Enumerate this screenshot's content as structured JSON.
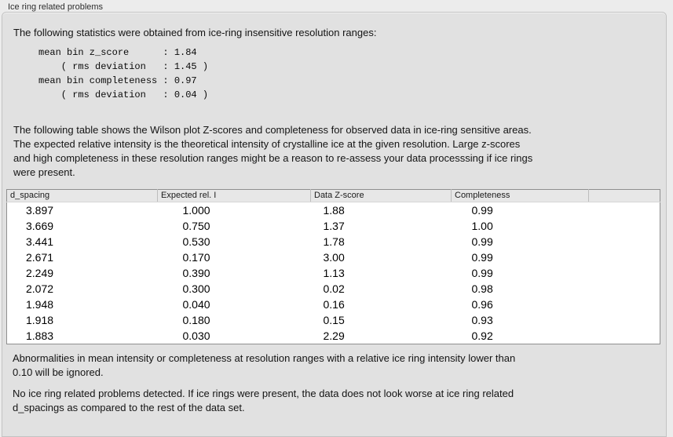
{
  "colors": {
    "outer_background": "#ececec",
    "panel_background": "#e1e1e1",
    "panel_border": "#c3c3c3",
    "table_background": "#ffffff",
    "table_border": "#8f8f8f",
    "table_header_background": "#e7e7e7"
  },
  "panel": {
    "title": "Ice ring related problems"
  },
  "intro": {
    "text": "The following statistics were obtained from ice-ring insensitive resolution ranges:"
  },
  "stats": {
    "lines": [
      "mean bin z_score      : 1.84",
      "    ( rms deviation   : 1.45 )",
      "mean bin completeness : 0.97",
      "    ( rms deviation   : 0.04 )"
    ]
  },
  "description": {
    "lines": [
      "The following table shows the Wilson plot Z-scores and completeness for observed data in ice-ring sensitive areas.",
      "The expected relative intensity is the theoretical intensity of crystalline ice at the given resolution. Large z-scores",
      "and high completeness in these resolution ranges might be a reason to re-assess your data processsing if ice rings",
      "were present."
    ]
  },
  "table": {
    "columns": [
      "d_spacing",
      "Expected rel. I",
      "Data Z-score",
      "Completeness",
      ""
    ],
    "rows": [
      [
        "3.897",
        "1.000",
        "1.88",
        "0.99"
      ],
      [
        "3.669",
        "0.750",
        "1.37",
        "1.00"
      ],
      [
        "3.441",
        "0.530",
        "1.78",
        "0.99"
      ],
      [
        "2.671",
        "0.170",
        "3.00",
        "0.99"
      ],
      [
        "2.249",
        "0.390",
        "1.13",
        "0.99"
      ],
      [
        "2.072",
        "0.300",
        "0.02",
        "0.98"
      ],
      [
        "1.948",
        "0.040",
        "0.16",
        "0.96"
      ],
      [
        "1.918",
        "0.180",
        "0.15",
        "0.93"
      ],
      [
        "1.883",
        "0.030",
        "2.29",
        "0.92"
      ]
    ]
  },
  "notes": {
    "ignore_rule": {
      "lines": [
        "Abnormalities in mean intensity or completeness at resolution ranges with a relative ice ring intensity lower than",
        "0.10 will be ignored."
      ]
    },
    "conclusion": {
      "lines": [
        "No ice ring related problems detected. If ice rings were present, the data does not look worse at ice ring related",
        "d_spacings as compared to the rest of the data set."
      ]
    }
  }
}
